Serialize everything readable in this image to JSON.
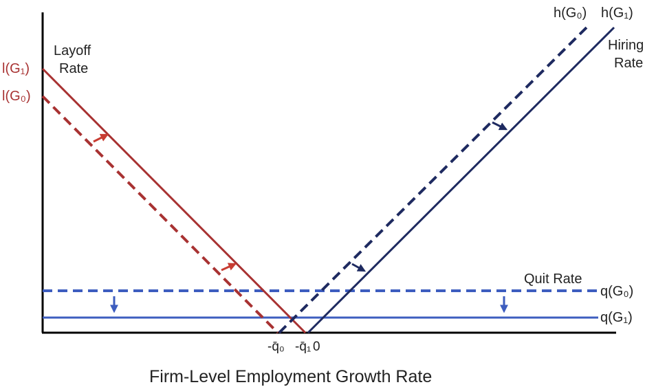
{
  "colors": {
    "layoff": "#a83232",
    "layoff_arrow": "#c83c32",
    "hiring": "#1e2a60",
    "quit": "#3d5dbf",
    "axis": "#000000"
  },
  "labels": {
    "layoff_rate_line1": "Layoff",
    "layoff_rate_line2": "Rate",
    "l_G1": "l(G₁)",
    "l_G0": "l(G₀)",
    "h_G0": "h(G₀)",
    "h_G1": "h(G₁)",
    "hiring_rate_line1": "Hiring",
    "hiring_rate_line2": "Rate",
    "quit_rate": "Quit Rate",
    "q_G0": "q(G₀)",
    "q_G1": "q(G₁)",
    "tick_q0": "-q̄₀",
    "tick_q1": "-q̄₁",
    "tick_zero": "0",
    "x_axis_title": "Firm-Level Employment Growth Rate"
  },
  "curves": [
    {
      "id": "layoff-G1",
      "style": "solid",
      "color_key": "layoff"
    },
    {
      "id": "layoff-G0",
      "style": "dashed",
      "color_key": "layoff"
    },
    {
      "id": "hiring-G1",
      "style": "solid",
      "color_key": "hiring"
    },
    {
      "id": "hiring-G0",
      "style": "dashed",
      "color_key": "hiring"
    },
    {
      "id": "quit-G1",
      "style": "solid",
      "color_key": "quit"
    },
    {
      "id": "quit-G0",
      "style": "dashed",
      "color_key": "quit"
    }
  ],
  "shift_arrows": [
    {
      "id": "layoff-shift-arrow",
      "direction": "up-right"
    },
    {
      "id": "hiring-shift-arrow",
      "direction": "down-right"
    },
    {
      "id": "quit-shift-arrow",
      "direction": "down"
    }
  ]
}
